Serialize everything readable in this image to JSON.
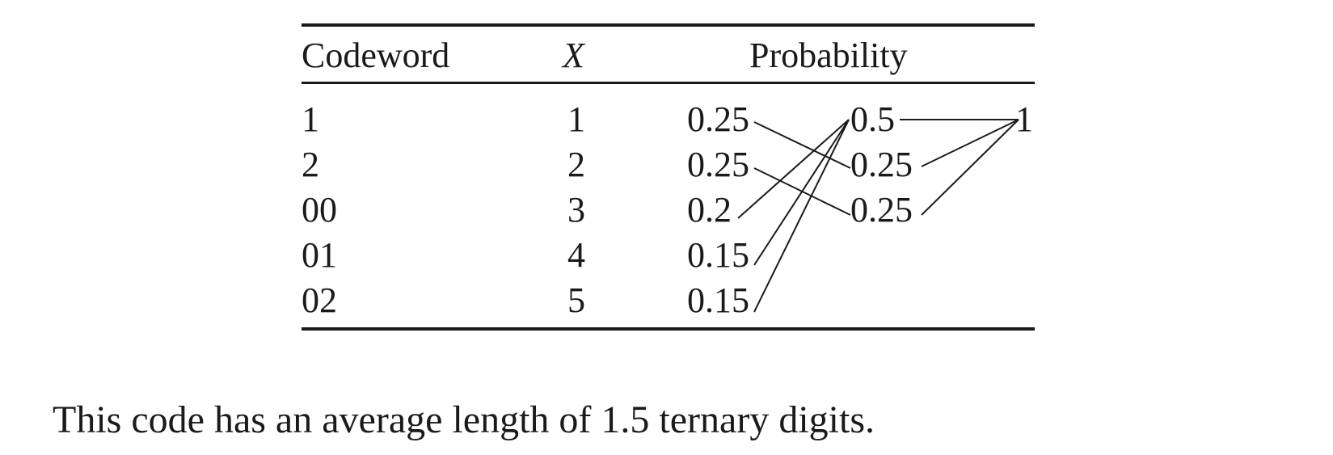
{
  "table": {
    "headers": {
      "codeword": "Codeword",
      "x": "X",
      "probability": "Probability"
    },
    "rows": [
      {
        "codeword": "1",
        "x": "1",
        "p0": "0.25",
        "p1": "0.5",
        "p2": "1"
      },
      {
        "codeword": "2",
        "x": "2",
        "p0": "0.25",
        "p1": "0.25"
      },
      {
        "codeword": "00",
        "x": "3",
        "p0": "0.2",
        "p1": "0.25"
      },
      {
        "codeword": "01",
        "x": "4",
        "p0": "0.15"
      },
      {
        "codeword": "02",
        "x": "5",
        "p0": "0.15"
      }
    ]
  },
  "caption": "This code has an average length of 1.5 ternary digits."
}
